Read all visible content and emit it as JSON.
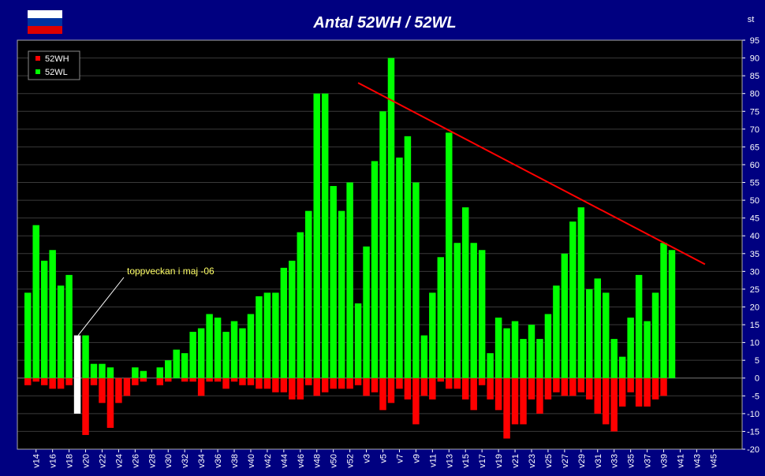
{
  "chart_data": {
    "type": "bar",
    "title": "Antal 52WH / 52WL",
    "y_unit": "st",
    "ylim": [
      -20,
      95
    ],
    "y_tick_step": 5,
    "grid": true,
    "legend_position": "top-left",
    "x_tick_labels": [
      "v14",
      "v16",
      "v18",
      "v20",
      "v22",
      "v24",
      "v26",
      "v28",
      "v30",
      "v32",
      "v34",
      "v36",
      "v38",
      "v40",
      "v42",
      "v44",
      "v46",
      "v48",
      "v50",
      "v52",
      "v3",
      "v5",
      "v7",
      "v9",
      "v11",
      "v13",
      "v15",
      "v17",
      "v19",
      "v21",
      "v23",
      "v25",
      "v27",
      "v29",
      "v31",
      "v33",
      "v35",
      "v37",
      "v39",
      "v41",
      "v43",
      "v45"
    ],
    "bar_count": 87,
    "series": [
      {
        "name": "52WH",
        "color": "#ff0000",
        "values": [
          -2,
          -1,
          -2,
          -3,
          -3,
          -2,
          -10,
          -16,
          -2,
          -7,
          -14,
          -7,
          -5,
          -2,
          -1,
          0,
          -2,
          -1,
          0,
          -1,
          -1,
          -5,
          -1,
          -1,
          -3,
          -1,
          -2,
          -2,
          -3,
          -3,
          -4,
          -4,
          -6,
          -6,
          -2,
          -5,
          -4,
          -3,
          -3,
          -3,
          -2,
          -5,
          -4,
          -9,
          -7,
          -3,
          -6,
          -13,
          -5,
          -6,
          -1,
          -3,
          -3,
          -6,
          -9,
          -2,
          -6,
          -9,
          -17,
          -13,
          -13,
          -6,
          -10,
          -6,
          -4,
          -5,
          -5,
          -4,
          -6,
          -10,
          -13,
          -15,
          -8,
          -4,
          -8,
          -8,
          -6,
          -5,
          null,
          null,
          null,
          null,
          null,
          null,
          null,
          null,
          null
        ],
        "highlight_color": "#ffffff",
        "highlight_index": 6
      },
      {
        "name": "52WL",
        "color": "#00ff00",
        "values": [
          24,
          43,
          33,
          36,
          26,
          29,
          12,
          12,
          4,
          4,
          3,
          0,
          0,
          3,
          2,
          0,
          3,
          5,
          8,
          7,
          13,
          14,
          18,
          17,
          13,
          16,
          14,
          18,
          23,
          24,
          24,
          31,
          33,
          41,
          47,
          80,
          80,
          54,
          47,
          55,
          21,
          37,
          61,
          75,
          90,
          62,
          68,
          55,
          12,
          24,
          34,
          69,
          38,
          48,
          38,
          36,
          7,
          17,
          14,
          16,
          11,
          15,
          11,
          18,
          26,
          35,
          44,
          48,
          25,
          28,
          24,
          11,
          6,
          17,
          29,
          16,
          24,
          38,
          36,
          null,
          null,
          null,
          null,
          null,
          null,
          null,
          null
        ],
        "highlight_color": "#ffffff",
        "highlight_index": 6
      }
    ],
    "annotations": [
      {
        "text": "toppveckan i maj -06",
        "target_index": 6,
        "target_value": 12
      }
    ],
    "trendline": {
      "color": "#ff0000",
      "from": {
        "index": 40.5,
        "value": 83
      },
      "to": {
        "index": 82.5,
        "value": 32
      }
    }
  },
  "flag": {
    "stripes": [
      "#ffffff",
      "#0033a0",
      "#dd0000"
    ]
  }
}
